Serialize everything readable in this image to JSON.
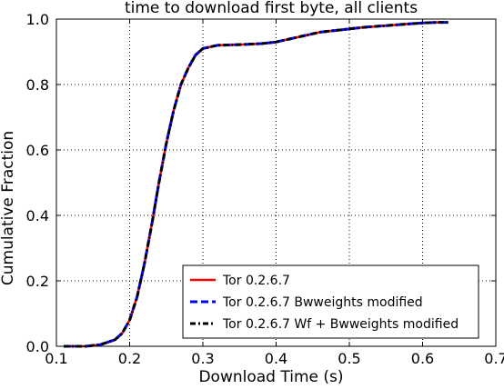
{
  "chart_data": {
    "type": "line",
    "title": "time to download first byte, all clients",
    "xlabel": "Download Time (s)",
    "ylabel": "Cumulative Fraction",
    "xlim": [
      0.1,
      0.7
    ],
    "ylim": [
      0.0,
      1.0
    ],
    "xticks": [
      0.1,
      0.2,
      0.3,
      0.4,
      0.5,
      0.6,
      0.7
    ],
    "xtick_labels": [
      "0.1",
      "0.2",
      "0.3",
      "0.4",
      "0.5",
      "0.6",
      "0.7"
    ],
    "yticks": [
      0.0,
      0.2,
      0.4,
      0.6,
      0.8,
      1.0
    ],
    "ytick_labels": [
      "0.0",
      "0.2",
      "0.4",
      "0.6",
      "0.8",
      "1.0"
    ],
    "grid": true,
    "legend_position": "lower-right",
    "series": [
      {
        "name": "Tor 0.2.6.7",
        "color": "#ff0000",
        "style": "solid",
        "x": [
          0.11,
          0.14,
          0.16,
          0.18,
          0.19,
          0.2,
          0.21,
          0.22,
          0.23,
          0.24,
          0.25,
          0.26,
          0.27,
          0.28,
          0.29,
          0.3,
          0.31,
          0.32,
          0.35,
          0.38,
          0.4,
          0.42,
          0.44,
          0.46,
          0.48,
          0.5,
          0.52,
          0.55,
          0.58,
          0.6,
          0.62,
          0.635
        ],
        "y": [
          0.0,
          0.0,
          0.005,
          0.02,
          0.04,
          0.08,
          0.15,
          0.25,
          0.37,
          0.5,
          0.62,
          0.72,
          0.8,
          0.85,
          0.89,
          0.91,
          0.915,
          0.92,
          0.922,
          0.925,
          0.93,
          0.94,
          0.95,
          0.96,
          0.965,
          0.97,
          0.975,
          0.98,
          0.985,
          0.988,
          0.99,
          0.99
        ]
      },
      {
        "name": "Tor 0.2.6.7 Bwweights modified",
        "color": "#0000ff",
        "style": "dashed",
        "x": [
          0.11,
          0.14,
          0.16,
          0.18,
          0.19,
          0.2,
          0.21,
          0.22,
          0.23,
          0.24,
          0.25,
          0.26,
          0.27,
          0.28,
          0.29,
          0.3,
          0.31,
          0.32,
          0.35,
          0.38,
          0.4,
          0.42,
          0.44,
          0.46,
          0.48,
          0.5,
          0.52,
          0.55,
          0.58,
          0.6,
          0.62,
          0.635
        ],
        "y": [
          0.0,
          0.0,
          0.005,
          0.02,
          0.04,
          0.08,
          0.15,
          0.25,
          0.37,
          0.5,
          0.62,
          0.72,
          0.8,
          0.85,
          0.89,
          0.91,
          0.915,
          0.92,
          0.922,
          0.925,
          0.93,
          0.94,
          0.95,
          0.96,
          0.965,
          0.97,
          0.975,
          0.98,
          0.985,
          0.988,
          0.99,
          0.99
        ]
      },
      {
        "name": "Tor 0.2.6.7 Wf + Bwweights modified",
        "color": "#000000",
        "style": "dashdot",
        "x": [
          0.11,
          0.14,
          0.16,
          0.18,
          0.19,
          0.2,
          0.21,
          0.22,
          0.23,
          0.24,
          0.25,
          0.26,
          0.27,
          0.28,
          0.29,
          0.3,
          0.31,
          0.32,
          0.35,
          0.38,
          0.4,
          0.42,
          0.44,
          0.46,
          0.48,
          0.5,
          0.52,
          0.55,
          0.58,
          0.6,
          0.62,
          0.635
        ],
        "y": [
          0.0,
          0.0,
          0.005,
          0.02,
          0.04,
          0.08,
          0.15,
          0.25,
          0.37,
          0.5,
          0.62,
          0.72,
          0.8,
          0.85,
          0.89,
          0.91,
          0.915,
          0.92,
          0.922,
          0.925,
          0.93,
          0.94,
          0.95,
          0.96,
          0.965,
          0.97,
          0.975,
          0.98,
          0.985,
          0.988,
          0.99,
          0.99
        ]
      }
    ]
  }
}
